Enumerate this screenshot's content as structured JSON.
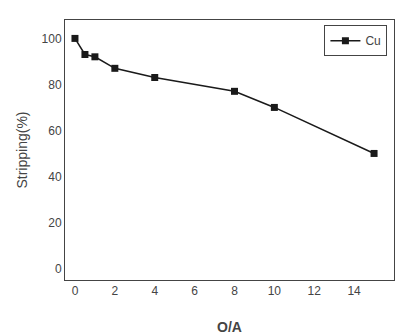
{
  "chart_data": {
    "type": "line",
    "xlabel": "O/A",
    "ylabel": "Stripping(%)",
    "x": [
      0.0,
      0.5,
      1.0,
      2.0,
      4.0,
      8.0,
      10.0,
      15.0
    ],
    "series": [
      {
        "name": "Cu",
        "color": "#1a1a1a",
        "marker": "square",
        "line_style": "solid",
        "values": [
          100,
          93,
          92,
          87,
          83,
          77,
          70,
          50
        ]
      }
    ],
    "xlim": [
      -0.5,
      16
    ],
    "ylim": [
      -5,
      108
    ],
    "xticks": [
      0,
      2,
      4,
      6,
      8,
      10,
      12,
      14
    ],
    "yticks": [
      0,
      20,
      40,
      60,
      80,
      100
    ],
    "legend": "upper right",
    "grid": false
  }
}
